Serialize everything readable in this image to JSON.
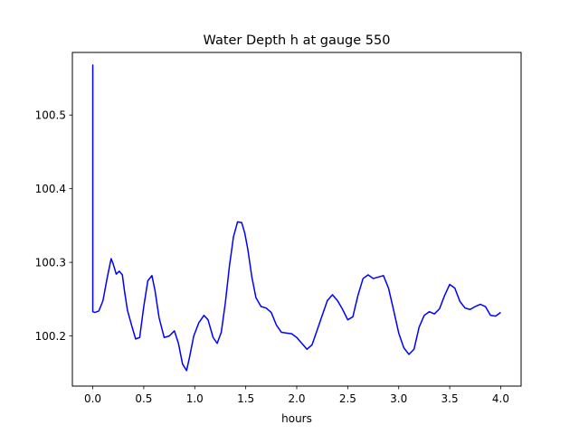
{
  "chart_data": {
    "type": "line",
    "title": "Water Depth h at gauge 550",
    "xlabel": "hours",
    "ylabel": "",
    "xlim": [
      -0.2,
      4.2
    ],
    "ylim": [
      100.132,
      100.585
    ],
    "grid": false,
    "x_ticks": [
      0.0,
      0.5,
      1.0,
      1.5,
      2.0,
      2.5,
      3.0,
      3.5,
      4.0
    ],
    "x_tick_labels": [
      "0.0",
      "0.5",
      "1.0",
      "1.5",
      "2.0",
      "2.5",
      "3.0",
      "3.5",
      "4.0"
    ],
    "y_ticks": [
      100.2,
      100.3,
      100.4,
      100.5
    ],
    "y_tick_labels": [
      "100.2",
      "100.3",
      "100.4",
      "100.5"
    ],
    "series": [
      {
        "color": "#0000ff",
        "x": [
          0.0,
          0.0,
          0.0,
          0.02,
          0.06,
          0.1,
          0.14,
          0.18,
          0.2,
          0.23,
          0.26,
          0.29,
          0.31,
          0.34,
          0.38,
          0.42,
          0.46,
          0.5,
          0.54,
          0.58,
          0.61,
          0.65,
          0.7,
          0.75,
          0.8,
          0.84,
          0.88,
          0.92,
          0.95,
          0.99,
          1.04,
          1.09,
          1.13,
          1.18,
          1.22,
          1.26,
          1.3,
          1.34,
          1.38,
          1.42,
          1.46,
          1.49,
          1.52,
          1.56,
          1.6,
          1.65,
          1.7,
          1.75,
          1.8,
          1.85,
          1.9,
          1.95,
          2.0,
          2.05,
          2.1,
          2.15,
          2.2,
          2.25,
          2.3,
          2.35,
          2.4,
          2.45,
          2.5,
          2.55,
          2.6,
          2.65,
          2.7,
          2.75,
          2.8,
          2.85,
          2.9,
          2.95,
          3.0,
          3.05,
          3.1,
          3.15,
          3.2,
          3.25,
          3.3,
          3.35,
          3.4,
          3.45,
          3.5,
          3.55,
          3.6,
          3.65,
          3.7,
          3.75,
          3.8,
          3.85,
          3.9,
          3.95,
          4.0
        ],
        "y": [
          100.233,
          100.568,
          100.233,
          100.232,
          100.234,
          100.248,
          100.278,
          100.305,
          100.298,
          100.284,
          100.288,
          100.283,
          100.262,
          100.235,
          100.215,
          100.196,
          100.198,
          100.24,
          100.275,
          100.282,
          100.262,
          100.225,
          100.198,
          100.2,
          100.207,
          100.19,
          100.162,
          100.153,
          100.172,
          100.2,
          100.218,
          100.228,
          100.222,
          100.198,
          100.19,
          100.205,
          100.245,
          100.295,
          100.335,
          100.355,
          100.354,
          100.34,
          100.318,
          100.28,
          100.252,
          100.24,
          100.238,
          100.232,
          100.215,
          100.205,
          100.204,
          100.203,
          100.198,
          100.19,
          100.182,
          100.188,
          100.208,
          100.228,
          100.248,
          100.256,
          100.248,
          100.236,
          100.222,
          100.226,
          100.255,
          100.278,
          100.283,
          100.278,
          100.28,
          100.282,
          100.265,
          100.235,
          100.204,
          100.184,
          100.175,
          100.182,
          100.212,
          100.228,
          100.233,
          100.23,
          100.237,
          100.255,
          100.27,
          100.265,
          100.247,
          100.238,
          100.236,
          100.24,
          100.243,
          100.24,
          100.228,
          100.227,
          100.232
        ]
      }
    ]
  }
}
